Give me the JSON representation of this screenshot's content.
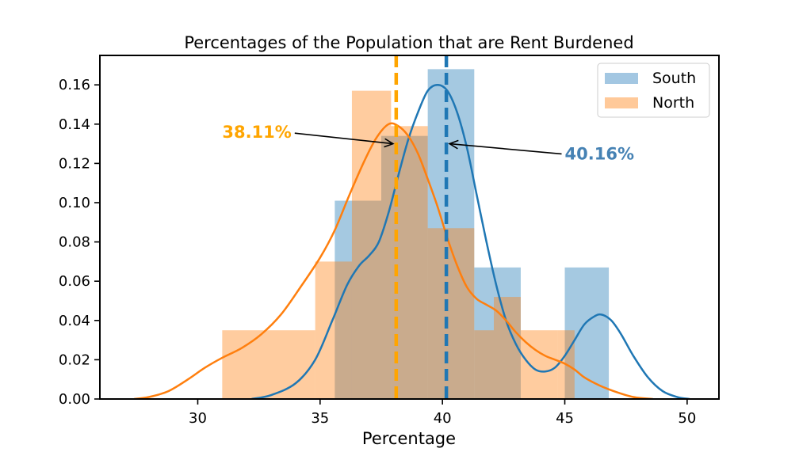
{
  "chart_data": {
    "type": "histogram",
    "title": "Percentages of the Population that are Rent Burdened",
    "xlabel": "Percentage",
    "ylabel": "",
    "xlim": [
      26,
      51.3
    ],
    "ylim": [
      0,
      0.175
    ],
    "xticks": [
      30,
      35,
      40,
      45,
      50
    ],
    "yticks": [
      0.0,
      0.02,
      0.04,
      0.06,
      0.08,
      0.1,
      0.12,
      0.14,
      0.16
    ],
    "ytick_labels": [
      "0.00",
      "0.02",
      "0.04",
      "0.06",
      "0.08",
      "0.10",
      "0.12",
      "0.14",
      "0.16"
    ],
    "legend": {
      "position": "upper right"
    },
    "series": [
      {
        "name": "South",
        "color": "#1f77b4",
        "bar_color": "#a3c7e2",
        "bins": [
          {
            "x0": 35.6,
            "x1": 37.5,
            "y": 0.101
          },
          {
            "x0": 37.5,
            "x1": 39.4,
            "y": 0.134
          },
          {
            "x0": 39.4,
            "x1": 41.3,
            "y": 0.168
          },
          {
            "x0": 41.3,
            "x1": 43.2,
            "y": 0.067
          },
          {
            "x0": 43.2,
            "x1": 45.0,
            "y": 0.0
          },
          {
            "x0": 45.0,
            "x1": 46.8,
            "y": 0.067
          }
        ],
        "kde": [
          [
            32.2,
            0.0
          ],
          [
            33.0,
            0.002
          ],
          [
            34.0,
            0.008
          ],
          [
            34.8,
            0.02
          ],
          [
            35.5,
            0.04
          ],
          [
            36.1,
            0.058
          ],
          [
            36.6,
            0.068
          ],
          [
            37.0,
            0.073
          ],
          [
            37.4,
            0.08
          ],
          [
            37.8,
            0.095
          ],
          [
            38.2,
            0.114
          ],
          [
            38.6,
            0.132
          ],
          [
            39.0,
            0.146
          ],
          [
            39.4,
            0.157
          ],
          [
            39.8,
            0.16
          ],
          [
            40.2,
            0.157
          ],
          [
            40.6,
            0.146
          ],
          [
            41.0,
            0.128
          ],
          [
            41.4,
            0.104
          ],
          [
            41.8,
            0.08
          ],
          [
            42.2,
            0.058
          ],
          [
            42.6,
            0.04
          ],
          [
            43.0,
            0.028
          ],
          [
            43.4,
            0.02
          ],
          [
            43.8,
            0.015
          ],
          [
            44.2,
            0.014
          ],
          [
            44.6,
            0.016
          ],
          [
            45.0,
            0.022
          ],
          [
            45.4,
            0.03
          ],
          [
            45.8,
            0.038
          ],
          [
            46.2,
            0.042
          ],
          [
            46.5,
            0.043
          ],
          [
            46.9,
            0.04
          ],
          [
            47.3,
            0.033
          ],
          [
            47.8,
            0.022
          ],
          [
            48.4,
            0.011
          ],
          [
            49.0,
            0.004
          ],
          [
            49.6,
            0.001
          ],
          [
            50.1,
            0.0
          ]
        ],
        "mean": 40.16,
        "mean_label": "40.16%",
        "annot_color": "#4682b4"
      },
      {
        "name": "North",
        "color": "#ff7f0e",
        "bar_color": "#ffc999",
        "bins": [
          {
            "x0": 31.0,
            "x1": 32.9,
            "y": 0.035
          },
          {
            "x0": 32.9,
            "x1": 34.8,
            "y": 0.035
          },
          {
            "x0": 34.8,
            "x1": 36.3,
            "y": 0.07
          },
          {
            "x0": 36.3,
            "x1": 37.9,
            "y": 0.157
          },
          {
            "x0": 37.9,
            "x1": 39.4,
            "y": 0.139
          },
          {
            "x0": 39.4,
            "x1": 41.3,
            "y": 0.087
          },
          {
            "x0": 41.3,
            "x1": 42.1,
            "y": 0.035
          },
          {
            "x0": 42.1,
            "x1": 43.2,
            "y": 0.052
          },
          {
            "x0": 43.2,
            "x1": 44.7,
            "y": 0.035
          },
          {
            "x0": 44.7,
            "x1": 45.4,
            "y": 0.035
          }
        ],
        "kde": [
          [
            27.4,
            0.0
          ],
          [
            28.0,
            0.001
          ],
          [
            28.8,
            0.004
          ],
          [
            29.6,
            0.01
          ],
          [
            30.3,
            0.016
          ],
          [
            31.0,
            0.021
          ],
          [
            31.8,
            0.026
          ],
          [
            32.6,
            0.033
          ],
          [
            33.4,
            0.043
          ],
          [
            34.2,
            0.057
          ],
          [
            35.0,
            0.072
          ],
          [
            35.6,
            0.086
          ],
          [
            36.2,
            0.104
          ],
          [
            36.8,
            0.121
          ],
          [
            37.3,
            0.133
          ],
          [
            37.8,
            0.14
          ],
          [
            38.2,
            0.139
          ],
          [
            38.6,
            0.134
          ],
          [
            39.0,
            0.125
          ],
          [
            39.4,
            0.112
          ],
          [
            39.8,
            0.098
          ],
          [
            40.2,
            0.082
          ],
          [
            40.6,
            0.068
          ],
          [
            41.0,
            0.057
          ],
          [
            41.4,
            0.051
          ],
          [
            41.8,
            0.048
          ],
          [
            42.2,
            0.045
          ],
          [
            42.6,
            0.04
          ],
          [
            43.0,
            0.034
          ],
          [
            43.4,
            0.029
          ],
          [
            43.8,
            0.025
          ],
          [
            44.2,
            0.022
          ],
          [
            44.6,
            0.02
          ],
          [
            45.0,
            0.018
          ],
          [
            45.4,
            0.015
          ],
          [
            45.8,
            0.011
          ],
          [
            46.4,
            0.007
          ],
          [
            47.0,
            0.004
          ],
          [
            47.8,
            0.001
          ],
          [
            48.6,
            0.0
          ]
        ],
        "mean": 38.11,
        "mean_label": "38.11%",
        "annot_color": "#ffa500"
      }
    ],
    "annotations": [
      {
        "series": "North",
        "text": "38.11%",
        "color": "#ffa500",
        "text_at": [
          31.0,
          0.133
        ],
        "arrow_to": [
          38.11,
          0.13
        ]
      },
      {
        "series": "South",
        "text": "40.16%",
        "color": "#4682b4",
        "text_at": [
          45.0,
          0.122
        ],
        "arrow_to": [
          40.16,
          0.13
        ]
      }
    ]
  }
}
